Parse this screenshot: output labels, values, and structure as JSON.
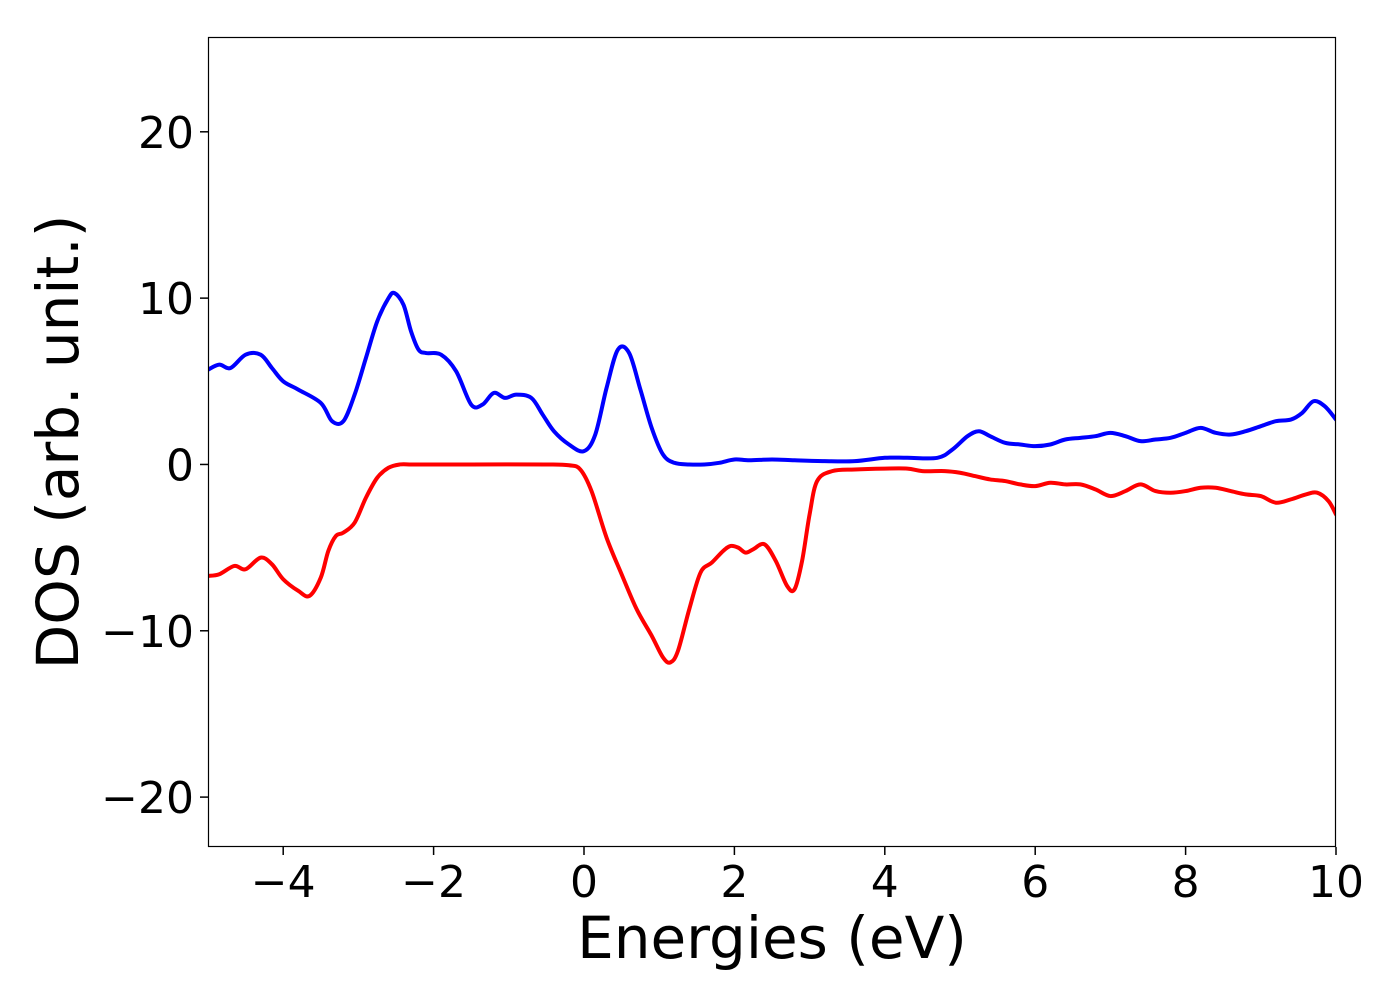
{
  "chart_data": {
    "type": "line",
    "title": "",
    "xlabel": "Energies (eV)",
    "ylabel": "DOS (arb. unit.)",
    "xlim": [
      -5,
      10
    ],
    "ylim": [
      -23,
      25.7
    ],
    "xticks": [
      -4,
      -2,
      0,
      2,
      4,
      6,
      8,
      10
    ],
    "yticks": [
      -20,
      -10,
      0,
      10,
      20
    ],
    "xtick_labels": [
      "−4",
      "−2",
      "0",
      "2",
      "4",
      "6",
      "8",
      "10"
    ],
    "ytick_labels": [
      "−20",
      "−10",
      "0",
      "10",
      "20"
    ],
    "grid": false,
    "legend": "none",
    "series": [
      {
        "color": "#0000ff",
        "x": [
          -5.0,
          -4.85,
          -4.7,
          -4.5,
          -4.3,
          -4.15,
          -4.0,
          -3.8,
          -3.5,
          -3.35,
          -3.2,
          -3.05,
          -2.9,
          -2.75,
          -2.6,
          -2.52,
          -2.4,
          -2.3,
          -2.2,
          -2.1,
          -1.9,
          -1.7,
          -1.5,
          -1.35,
          -1.2,
          -1.05,
          -0.9,
          -0.7,
          -0.55,
          -0.4,
          -0.2,
          0.0,
          0.15,
          0.3,
          0.45,
          0.6,
          0.75,
          0.9,
          1.05,
          1.2,
          1.4,
          1.6,
          1.8,
          2.0,
          2.2,
          2.5,
          2.8,
          3.2,
          3.6,
          4.0,
          4.3,
          4.7,
          4.9,
          5.1,
          5.25,
          5.4,
          5.6,
          5.8,
          6.0,
          6.2,
          6.4,
          6.6,
          6.8,
          7.0,
          7.2,
          7.4,
          7.6,
          7.8,
          8.0,
          8.2,
          8.4,
          8.6,
          8.8,
          9.0,
          9.2,
          9.4,
          9.55,
          9.7,
          9.85,
          10.0
        ],
        "y": [
          5.7,
          6.0,
          5.8,
          6.6,
          6.6,
          5.8,
          5.0,
          4.5,
          3.7,
          2.6,
          2.6,
          4.2,
          6.4,
          8.6,
          10.0,
          10.3,
          9.6,
          8.0,
          6.9,
          6.7,
          6.6,
          5.6,
          3.6,
          3.6,
          4.3,
          4.0,
          4.2,
          4.0,
          3.0,
          2.0,
          1.2,
          0.8,
          1.8,
          4.6,
          6.9,
          6.7,
          4.5,
          2.2,
          0.6,
          0.1,
          0.0,
          0.0,
          0.1,
          0.3,
          0.25,
          0.3,
          0.25,
          0.2,
          0.2,
          0.4,
          0.4,
          0.4,
          0.9,
          1.7,
          2.0,
          1.7,
          1.3,
          1.2,
          1.1,
          1.2,
          1.5,
          1.6,
          1.7,
          1.9,
          1.7,
          1.4,
          1.5,
          1.6,
          1.9,
          2.2,
          1.9,
          1.8,
          2.0,
          2.3,
          2.6,
          2.7,
          3.1,
          3.8,
          3.5,
          2.7
        ]
      },
      {
        "color": "#ff0000",
        "x": [
          -5.0,
          -4.85,
          -4.65,
          -4.5,
          -4.3,
          -4.15,
          -4.0,
          -3.8,
          -3.65,
          -3.5,
          -3.4,
          -3.3,
          -3.2,
          -3.05,
          -2.9,
          -2.75,
          -2.6,
          -2.45,
          -2.3,
          -2.1,
          -1.5,
          -0.5,
          -0.2,
          -0.05,
          0.1,
          0.3,
          0.5,
          0.7,
          0.9,
          1.05,
          1.15,
          1.25,
          1.4,
          1.55,
          1.7,
          1.85,
          1.95,
          2.05,
          2.15,
          2.25,
          2.4,
          2.55,
          2.7,
          2.8,
          2.9,
          3.0,
          3.1,
          3.3,
          3.6,
          4.0,
          4.3,
          4.5,
          4.8,
          5.0,
          5.2,
          5.4,
          5.6,
          5.8,
          6.0,
          6.2,
          6.4,
          6.6,
          6.8,
          7.0,
          7.2,
          7.4,
          7.6,
          7.8,
          8.0,
          8.2,
          8.4,
          8.6,
          8.8,
          9.0,
          9.2,
          9.4,
          9.6,
          9.75,
          9.9,
          10.0
        ],
        "y": [
          -6.7,
          -6.6,
          -6.1,
          -6.3,
          -5.6,
          -6.0,
          -6.9,
          -7.6,
          -7.9,
          -6.8,
          -5.2,
          -4.3,
          -4.1,
          -3.5,
          -2.0,
          -0.8,
          -0.2,
          0.0,
          0.0,
          0.0,
          0.0,
          0.0,
          -0.05,
          -0.3,
          -1.6,
          -4.4,
          -6.6,
          -8.7,
          -10.3,
          -11.6,
          -11.9,
          -11.2,
          -8.7,
          -6.5,
          -5.9,
          -5.2,
          -4.9,
          -5.0,
          -5.3,
          -5.1,
          -4.8,
          -5.8,
          -7.3,
          -7.5,
          -5.8,
          -3.0,
          -1.0,
          -0.4,
          -0.3,
          -0.25,
          -0.25,
          -0.4,
          -0.4,
          -0.5,
          -0.7,
          -0.9,
          -1.0,
          -1.2,
          -1.3,
          -1.1,
          -1.2,
          -1.2,
          -1.5,
          -1.9,
          -1.6,
          -1.2,
          -1.6,
          -1.7,
          -1.6,
          -1.4,
          -1.4,
          -1.6,
          -1.8,
          -1.9,
          -2.3,
          -2.1,
          -1.8,
          -1.7,
          -2.2,
          -3.0
        ]
      }
    ]
  }
}
